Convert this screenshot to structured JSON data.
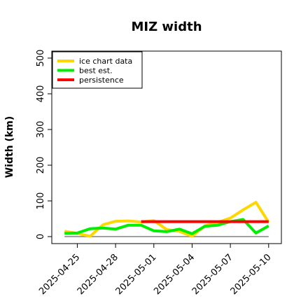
{
  "chart_data": {
    "type": "line",
    "title": "MIZ width",
    "xlabel": "",
    "ylabel": "Width (km)",
    "x_dates": [
      "2025-04-24",
      "2025-04-25",
      "2025-04-26",
      "2025-04-27",
      "2025-04-28",
      "2025-04-29",
      "2025-04-30",
      "2025-05-01",
      "2025-05-02",
      "2025-05-03",
      "2025-05-04",
      "2025-05-05",
      "2025-05-06",
      "2025-05-07",
      "2025-05-08",
      "2025-05-09",
      "2025-05-10"
    ],
    "xticks": [
      "2025-04-25",
      "2025-04-28",
      "2025-05-01",
      "2025-05-04",
      "2025-05-07",
      "2025-05-10"
    ],
    "xlim": [
      "2025-04-23",
      "2025-05-11"
    ],
    "ylim": [
      0,
      520
    ],
    "yticks": [
      0,
      100,
      200,
      300,
      400,
      500
    ],
    "grid": false,
    "legend_position": "top-left",
    "series": [
      {
        "name": "ice chart data",
        "color": "#FFD700",
        "x": [
          "2025-04-24",
          "2025-04-25",
          "2025-04-26",
          "2025-04-27",
          "2025-04-28",
          "2025-04-29",
          "2025-04-30",
          "2025-05-01",
          "2025-05-02",
          "2025-05-03",
          "2025-05-04",
          "2025-05-05",
          "2025-05-06",
          "2025-05-07",
          "2025-05-08",
          "2025-05-09",
          "2025-05-10"
        ],
        "values": [
          15,
          9,
          1,
          33,
          43,
          44,
          41,
          45,
          20,
          15,
          1,
          30,
          40,
          52,
          75,
          96,
          40
        ]
      },
      {
        "name": "best est.",
        "color": "#00EE00",
        "x": [
          "2025-04-24",
          "2025-04-25",
          "2025-04-26",
          "2025-04-27",
          "2025-04-28",
          "2025-04-29",
          "2025-04-30",
          "2025-05-01",
          "2025-05-02",
          "2025-05-03",
          "2025-05-04",
          "2025-05-05",
          "2025-05-06",
          "2025-05-07",
          "2025-05-08",
          "2025-05-09",
          "2025-05-10"
        ],
        "values": [
          9,
          10,
          22,
          24,
          21,
          32,
          32,
          16,
          14,
          21,
          8,
          29,
          32,
          42,
          48,
          10,
          30
        ]
      },
      {
        "name": "persistence",
        "color": "#FF0000",
        "x": [
          "2025-04-30",
          "2025-05-10"
        ],
        "values": [
          42,
          42
        ]
      }
    ],
    "reference_line": {
      "color": "#808080",
      "value": 0,
      "x": [
        "2025-04-24",
        "2025-05-10"
      ]
    }
  }
}
